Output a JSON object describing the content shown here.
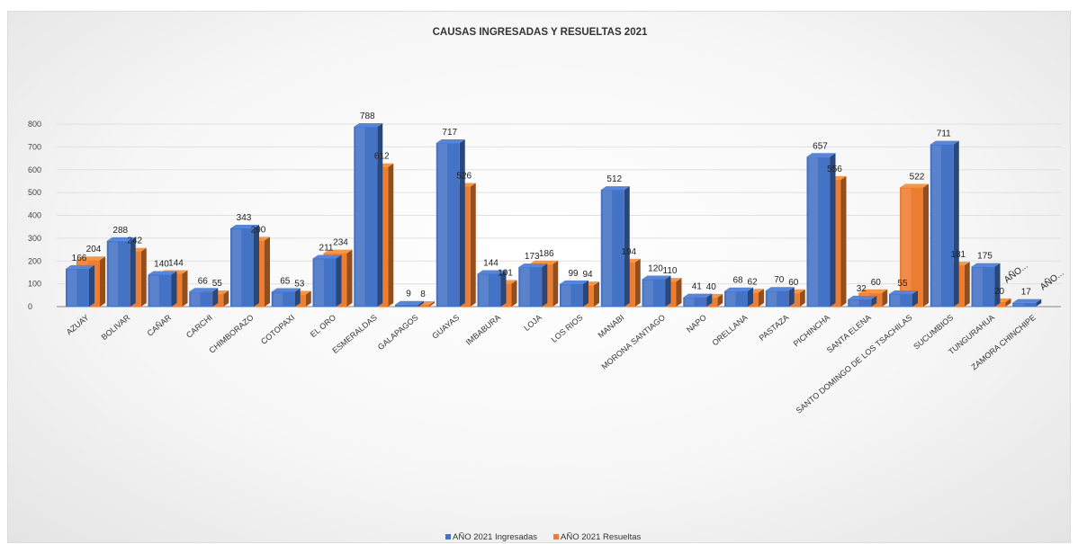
{
  "chart_data": {
    "type": "bar",
    "title": "CAUSAS INGRESADAS Y RESUELTAS 2021",
    "xlabel": "",
    "ylabel": "",
    "ylim": [
      0,
      800
    ],
    "yticks": [
      0,
      100,
      200,
      300,
      400,
      500,
      600,
      700,
      800
    ],
    "grid": true,
    "legend": "bottom",
    "categories": [
      "AZUAY",
      "BOLIVAR",
      "CAÑAR",
      "CARCHI",
      "CHIMBORAZO",
      "COTOPAXI",
      "EL ORO",
      "ESMERALDAS",
      "GALAPAGOS",
      "GUAYAS",
      "IMBABURA",
      "LOJA",
      "LOS RIOS",
      "MANABI",
      "MORONA SANTIAGO",
      "NAPO",
      "ORELLANA",
      "PASTAZA",
      "PICHINCHA",
      "SANTA ELENA",
      "SANTO DOMINGO DE LOS TSACHILAS",
      "SUCUMBIOS",
      "TUNGURAHUA",
      "ZAMORA CHINCHIPE"
    ],
    "series": [
      {
        "name": "AÑO 2021 Ingresadas",
        "color": "#4472c4",
        "values": [
          166,
          288,
          140,
          66,
          343,
          65,
          211,
          788,
          9,
          717,
          144,
          173,
          99,
          512,
          120,
          41,
          68,
          70,
          657,
          32,
          55,
          711,
          175,
          17
        ]
      },
      {
        "name": "AÑO 2021 Resueltas",
        "color": "#ed7d31",
        "values": [
          204,
          242,
          144,
          55,
          290,
          53,
          234,
          612,
          8,
          526,
          101,
          186,
          94,
          194,
          110,
          40,
          62,
          60,
          556,
          60,
          522,
          181,
          20,
          0
        ]
      }
    ],
    "overflow_labels": [
      "AÑO...",
      "AÑO..."
    ]
  }
}
